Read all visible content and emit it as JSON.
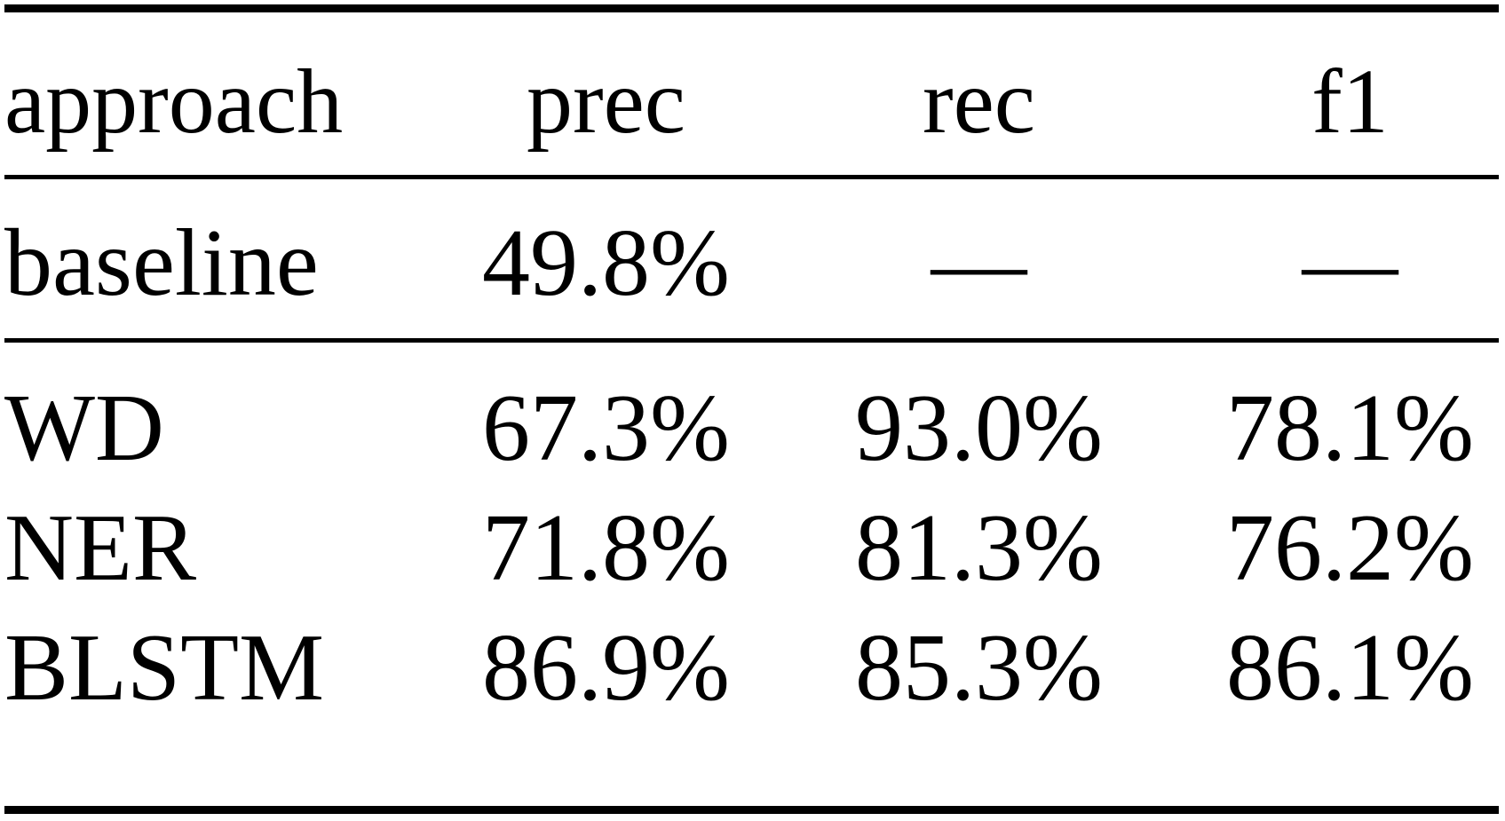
{
  "table": {
    "headers": [
      "approach",
      "prec",
      "rec",
      "f1"
    ],
    "baseline": [
      "baseline",
      "49.8%",
      "—",
      "—"
    ],
    "rows": [
      [
        "WD",
        "67.3%",
        "93.0%",
        "78.1%"
      ],
      [
        "NER",
        "71.8%",
        "81.3%",
        "76.2%"
      ],
      [
        "BLSTM",
        "86.9%",
        "85.3%",
        "86.1%"
      ]
    ]
  }
}
